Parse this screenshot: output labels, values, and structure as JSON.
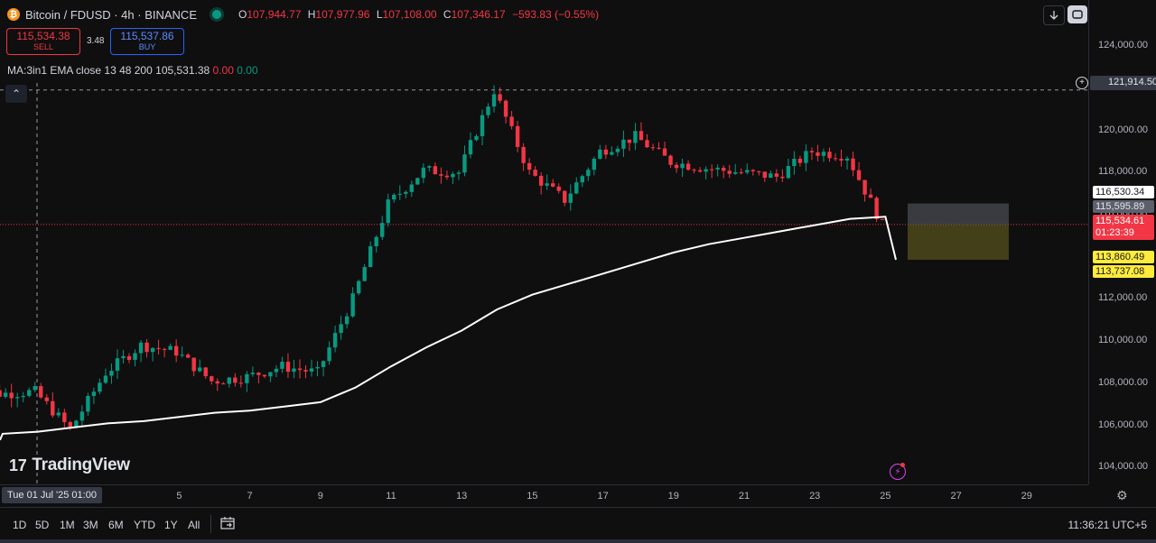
{
  "symbol": {
    "logo_glyph": "₿",
    "title": "Bitcoin / FDUSD · 4h · BINANCE",
    "ohlc": [
      {
        "k": "O",
        "v": "107,944.77"
      },
      {
        "k": "H",
        "v": "107,977.96"
      },
      {
        "k": "L",
        "v": "107,108.00"
      },
      {
        "k": "C",
        "v": "107,346.17"
      }
    ],
    "change": "−593.83 (−0.55%)"
  },
  "trade": {
    "sell_price": "115,534.38",
    "sell_label": "SELL",
    "spread": "3.48",
    "buy_price": "115,537.86",
    "buy_label": "BUY"
  },
  "indicator": {
    "name": "MA:3in1",
    "params": "EMA close 13 48 200",
    "value": "105,531.38",
    "v2": "0.00",
    "v3": "0.00"
  },
  "toolbar_top": {
    "download_icon": "down-arrow-icon",
    "fullscreen_icon": "fullscreen-icon",
    "collapse_glyph": "⌃"
  },
  "brand": {
    "logo_mark": "17",
    "name": "TradingView"
  },
  "price_axis": {
    "ticks": [
      "124,000.00",
      "120,000.00",
      "118,000.00",
      "116,000.00",
      "112,000.00",
      "110,000.00",
      "108,000.00",
      "106,000.00",
      "104,000.00"
    ],
    "tick_values": [
      124000,
      120000,
      118000,
      116000,
      112000,
      110000,
      108000,
      106000,
      104000
    ],
    "crosshair_price": "121,914.50",
    "tag_high": "116,530.34",
    "tag_mid": "115,595.89",
    "tag_last": "115,534.61",
    "tag_countdown": "01:23:39",
    "tag_ma1": "113,860.49",
    "tag_ma2": "113,737.08"
  },
  "time_axis": {
    "crosshair": "Tue 01 Jul '25   01:00",
    "labels": [
      "5",
      "7",
      "9",
      "11",
      "13",
      "15",
      "17",
      "19",
      "21",
      "23",
      "25",
      "27",
      "29"
    ]
  },
  "bottom_toolbar": {
    "ranges": [
      "1D",
      "5D",
      "1M",
      "3M",
      "6M",
      "YTD",
      "1Y",
      "All"
    ],
    "clock": "11:36:21 UTC+5"
  },
  "colors": {
    "up": "#089981",
    "down": "#f23645",
    "ma": "#ffffff",
    "bg": "#0f0f0f"
  },
  "chart_data": {
    "type": "candlestick",
    "interval": "4h",
    "ylim": [
      103500,
      125500
    ],
    "x": [
      "Jun 29",
      "Jun 30",
      "Jul 1",
      "Jul 2",
      "Jul 3",
      "Jul 4",
      "Jul 5",
      "Jul 6",
      "Jul 7",
      "Jul 8",
      "Jul 9",
      "Jul 10",
      "Jul 11",
      "Jul 12",
      "Jul 13",
      "Jul 14",
      "Jul 15",
      "Jul 16",
      "Jul 17",
      "Jul 18",
      "Jul 19",
      "Jul 20",
      "Jul 21",
      "Jul 22",
      "Jul 23",
      "Jul 24",
      "Jul 25",
      "Jul 26",
      "Jul 27",
      "Jul 28",
      "Jul 29"
    ],
    "close": [
      108000,
      107500,
      107600,
      105800,
      108500,
      109800,
      109500,
      108100,
      108300,
      108800,
      108500,
      112000,
      116500,
      118100,
      118000,
      121900,
      118000,
      116700,
      119000,
      119700,
      118500,
      118200,
      118000,
      117800,
      119000,
      118800,
      115500,
      null,
      null,
      null,
      null
    ],
    "ma200": [
      105300,
      105600,
      105700,
      105900,
      106100,
      106200,
      106400,
      106600,
      106700,
      106900,
      107100,
      107800,
      108800,
      109700,
      110500,
      111500,
      112200,
      112700,
      113200,
      113700,
      114200,
      114600,
      114900,
      115200,
      115500,
      115800,
      115900,
      null,
      null,
      null,
      null
    ]
  }
}
